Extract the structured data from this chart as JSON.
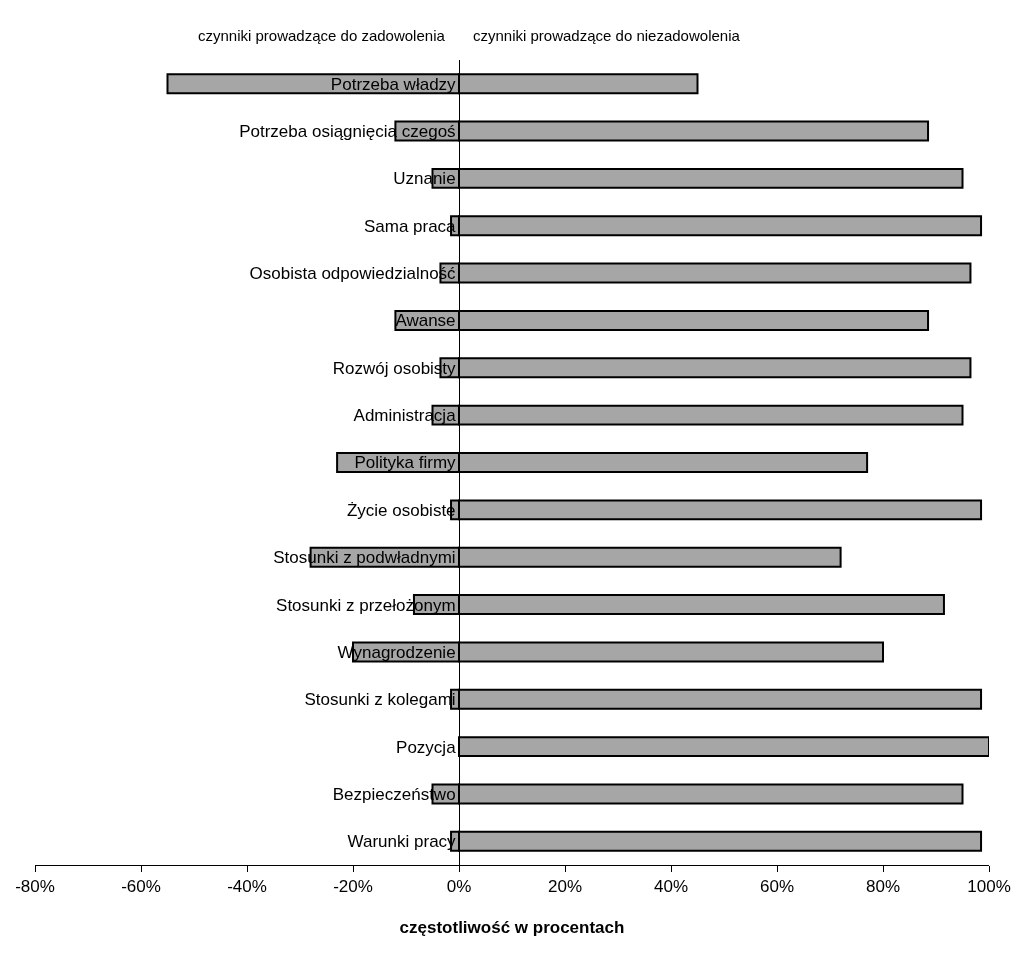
{
  "chart_data": {
    "type": "bar",
    "orientation": "horizontal",
    "stacked": true,
    "xlabel": "częstotliwość w procentach",
    "annotations": [
      "czynniki prowadzące do zadowolenia",
      "czynniki prowadzące do niezadowolenia"
    ],
    "categories": [
      "Potrzeba władzy",
      "Potrzeba osiągnięcia czegoś",
      "Uznanie",
      "Sama praca",
      "Osobista odpowiedzialność",
      "Awanse",
      "Rozwój osobisty",
      "Administracja",
      "Polityka firmy",
      "Życie osobiste",
      "Stosunki z podwładnymi",
      "Stosunki z przełożonym",
      "Wynagrodzenie",
      "Stosunki z kolegami",
      "Pozycja",
      "Bezpieczeństwo",
      "Warunki pracy"
    ],
    "series": [
      {
        "color": "#a6a6a6",
        "values": [
          -55,
          -12,
          -5,
          -1.5,
          -3.5,
          -12,
          -3.5,
          -5,
          -23,
          -1.5,
          -28,
          -8.5,
          -20,
          -1.5,
          0,
          -5,
          -1.5
        ]
      },
      {
        "color": "#a6a6a6",
        "values": [
          45,
          88.5,
          95,
          98.5,
          96.5,
          88.5,
          96.5,
          95,
          77,
          98.5,
          72,
          91.5,
          80,
          98.5,
          100,
          95,
          98.5
        ]
      }
    ],
    "xlim": [
      -80,
      100
    ],
    "xticks": [
      {
        "value": -80,
        "label": "-80%"
      },
      {
        "value": -60,
        "label": "-60%"
      },
      {
        "value": -40,
        "label": "-40%"
      },
      {
        "value": -20,
        "label": "-20%"
      },
      {
        "value": 0,
        "label": "0%"
      },
      {
        "value": 20,
        "label": "20%"
      },
      {
        "value": 40,
        "label": "40%"
      },
      {
        "value": 60,
        "label": "60%"
      },
      {
        "value": 80,
        "label": "80%"
      },
      {
        "value": 100,
        "label": "100%"
      }
    ],
    "tick_labels": true
  }
}
